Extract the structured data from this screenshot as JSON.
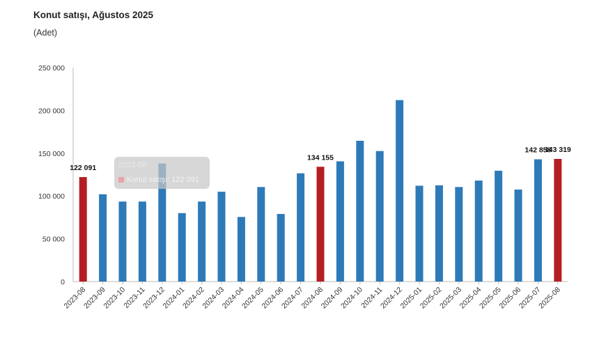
{
  "header": {
    "title": "Konut satışı, Ağustos 2025",
    "subtitle": "(Adet)"
  },
  "tooltip": {
    "title": "2023-08",
    "series": "Konut satışı",
    "value": "122 091"
  },
  "colors": {
    "bar": "#2e7ab8",
    "highlight": "#b41f24",
    "axis": "#bbbbbb"
  },
  "chart_data": {
    "type": "bar",
    "title": "Konut satışı, Ağustos 2025",
    "ylabel": "(Adet)",
    "xlabel": "",
    "ylim": [
      0,
      250000
    ],
    "yticks": [
      0,
      50000,
      100000,
      150000,
      200000,
      250000
    ],
    "ytick_labels": [
      "0",
      "50 000",
      "100 000",
      "150 000",
      "200 000",
      "250 000"
    ],
    "grid": false,
    "categories": [
      "2023-08",
      "2023-09",
      "2023-10",
      "2023-11",
      "2023-12",
      "2024-01",
      "2024-02",
      "2024-03",
      "2024-04",
      "2024-05",
      "2024-06",
      "2024-07",
      "2024-08",
      "2024-09",
      "2024-10",
      "2024-11",
      "2024-12",
      "2025-01",
      "2025-02",
      "2025-03",
      "2025-04",
      "2025-05",
      "2025-06",
      "2025-07",
      "2025-08"
    ],
    "series": [
      {
        "name": "Konut satışı",
        "values": [
          122091,
          102000,
          93500,
          93500,
          138000,
          80000,
          93500,
          105000,
          75500,
          110500,
          79000,
          126500,
          134155,
          140500,
          164500,
          152500,
          212000,
          112000,
          112500,
          110500,
          118000,
          129500,
          107500,
          142858,
          143319
        ]
      }
    ],
    "highlighted": [
      "2023-08",
      "2024-08",
      "2025-08"
    ],
    "data_labels": [
      {
        "category": "2023-08",
        "text": "122 091"
      },
      {
        "category": "2024-08",
        "text": "134 155"
      },
      {
        "category": "2025-07",
        "text": "142 858"
      },
      {
        "category": "2025-08",
        "text": "143 319"
      }
    ]
  }
}
